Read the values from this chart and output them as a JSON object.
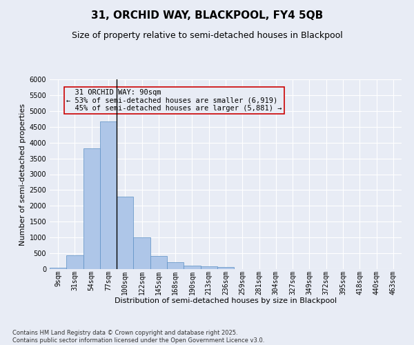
{
  "title": "31, ORCHID WAY, BLACKPOOL, FY4 5QB",
  "subtitle": "Size of property relative to semi-detached houses in Blackpool",
  "xlabel": "Distribution of semi-detached houses by size in Blackpool",
  "ylabel": "Number of semi-detached properties",
  "footnote": "Contains HM Land Registry data © Crown copyright and database right 2025.\nContains public sector information licensed under the Open Government Licence v3.0.",
  "bar_labels": [
    "9sqm",
    "31sqm",
    "54sqm",
    "77sqm",
    "100sqm",
    "122sqm",
    "145sqm",
    "168sqm",
    "190sqm",
    "213sqm",
    "236sqm",
    "259sqm",
    "281sqm",
    "304sqm",
    "327sqm",
    "349sqm",
    "372sqm",
    "395sqm",
    "418sqm",
    "440sqm",
    "463sqm"
  ],
  "bar_values": [
    50,
    430,
    3820,
    4680,
    2300,
    1000,
    420,
    210,
    100,
    80,
    60,
    0,
    0,
    0,
    0,
    0,
    0,
    0,
    0,
    0,
    0
  ],
  "bar_color": "#aec6e8",
  "bar_edge_color": "#5b8fc4",
  "highlight_bar_index": 3,
  "highlight_line_color": "#000000",
  "property_label": "31 ORCHID WAY: 90sqm",
  "pct_smaller": 53,
  "count_smaller": 6919,
  "pct_larger": 45,
  "count_larger": 5881,
  "annotation_box_color": "#cc0000",
  "ylim": [
    0,
    6000
  ],
  "yticks": [
    0,
    500,
    1000,
    1500,
    2000,
    2500,
    3000,
    3500,
    4000,
    4500,
    5000,
    5500,
    6000
  ],
  "bg_color": "#e8ecf5",
  "grid_color": "#ffffff",
  "title_fontsize": 11,
  "subtitle_fontsize": 9,
  "axis_label_fontsize": 8,
  "tick_fontsize": 7,
  "annotation_fontsize": 7.5,
  "footnote_fontsize": 6
}
